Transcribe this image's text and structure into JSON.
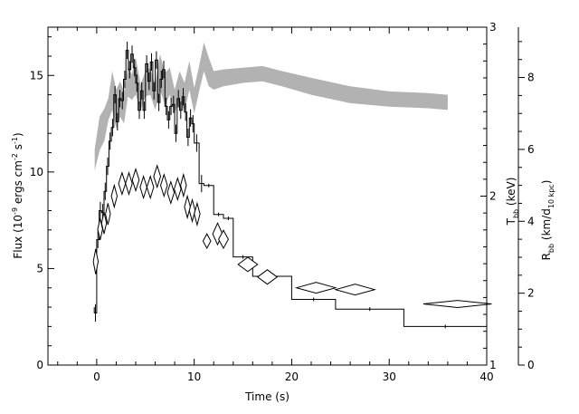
{
  "chart_data": {
    "type": "line",
    "xlabel": "Time (s)",
    "ylabel_left": {
      "pre": "Flux (10",
      "e1": "-9",
      "mid1": " ergs cm",
      "e2": "-2",
      "mid2": " s",
      "e3": "-1",
      "post": ")"
    },
    "ylabel_right1": {
      "pre": "T",
      "sub": "bb",
      "post": " (keV)"
    },
    "ylabel_right2": {
      "pre": "R",
      "sub1": "bb",
      "mid": " (km/d",
      "sub2": "10 kpc",
      "post": ")"
    },
    "xlim": [
      -5,
      40
    ],
    "ylim_flux": [
      0,
      17.5
    ],
    "ylim_kT": [
      1,
      3
    ],
    "ylim_R": [
      0,
      9.4
    ],
    "x_ticks": [
      "0",
      "10",
      "20",
      "30",
      "40"
    ],
    "y_ticks_left": [
      "0",
      "5",
      "10",
      "15"
    ],
    "y_ticks_right1": [
      "1",
      "2",
      "3"
    ],
    "y_ticks_right2": [
      "0",
      "2",
      "4",
      "6",
      "8"
    ],
    "series": [
      {
        "name": "",
        "style": "histogram",
        "steps": [
          [
            -0.25,
            0.0,
            2.7
          ],
          [
            0.0,
            0.25,
            6.5
          ],
          [
            0.25,
            0.5,
            8.0
          ],
          [
            0.5,
            0.75,
            7.9
          ],
          [
            0.75,
            1.0,
            9.0
          ],
          [
            1.0,
            1.25,
            10.3
          ],
          [
            1.25,
            1.5,
            11.6
          ],
          [
            1.5,
            1.75,
            12.3
          ],
          [
            1.75,
            2.0,
            14.0
          ],
          [
            2.0,
            2.25,
            12.6
          ],
          [
            2.25,
            2.5,
            13.8
          ],
          [
            2.5,
            2.75,
            13.7
          ],
          [
            2.75,
            3.0,
            14.8
          ],
          [
            3.0,
            3.25,
            16.3
          ],
          [
            3.25,
            3.5,
            15.3
          ],
          [
            3.5,
            3.75,
            16.1
          ],
          [
            3.75,
            4.0,
            15.4
          ],
          [
            4.0,
            4.25,
            14.6
          ],
          [
            4.25,
            4.5,
            13.2
          ],
          [
            4.5,
            4.75,
            14.2
          ],
          [
            4.75,
            5.0,
            13.2
          ],
          [
            5.0,
            5.25,
            15.6
          ],
          [
            5.25,
            5.5,
            14.7
          ],
          [
            5.5,
            5.75,
            15.7
          ],
          [
            5.75,
            6.0,
            14.2
          ],
          [
            6.0,
            6.25,
            15.8
          ],
          [
            6.25,
            6.5,
            13.6
          ],
          [
            6.5,
            6.75,
            14.8
          ],
          [
            6.75,
            7.0,
            15.3
          ],
          [
            7.0,
            7.25,
            13.4
          ],
          [
            7.25,
            7.5,
            12.7
          ],
          [
            7.5,
            7.75,
            13.4
          ],
          [
            7.75,
            8.0,
            13.5
          ],
          [
            8.0,
            8.25,
            12.0
          ],
          [
            8.25,
            8.5,
            13.8
          ],
          [
            8.5,
            8.75,
            13.2
          ],
          [
            8.75,
            9.0,
            13.9
          ],
          [
            9.0,
            9.25,
            13.1
          ],
          [
            9.25,
            9.5,
            11.8
          ],
          [
            9.5,
            9.75,
            12.8
          ],
          [
            9.75,
            10.0,
            12.5
          ],
          [
            10.0,
            10.5,
            11.5
          ],
          [
            10.5,
            11.0,
            9.4
          ],
          [
            11.0,
            12.0,
            9.3
          ],
          [
            12.0,
            13.0,
            7.8
          ],
          [
            13.0,
            14.0,
            7.6
          ],
          [
            14.0,
            16.0,
            5.6
          ],
          [
            16.0,
            20.0,
            4.6
          ],
          [
            20.0,
            24.5,
            3.4
          ],
          [
            24.5,
            31.5,
            2.9
          ],
          [
            31.5,
            40.0,
            2.0
          ]
        ]
      },
      {
        "name": "",
        "style": "diamonds",
        "axis": "R",
        "points": [
          [
            -0.1,
            2.88,
            0.25,
            0.35
          ],
          [
            0.35,
            3.78,
            0.25,
            0.3
          ],
          [
            0.75,
            3.95,
            0.25,
            0.3
          ],
          [
            1.15,
            4.2,
            0.25,
            0.3
          ],
          [
            1.8,
            4.7,
            0.3,
            0.3
          ],
          [
            2.6,
            5.05,
            0.35,
            0.3
          ],
          [
            3.3,
            5.05,
            0.35,
            0.3
          ],
          [
            4.0,
            5.15,
            0.35,
            0.3
          ],
          [
            4.8,
            4.95,
            0.35,
            0.3
          ],
          [
            5.5,
            4.95,
            0.35,
            0.3
          ],
          [
            6.2,
            5.25,
            0.35,
            0.3
          ],
          [
            6.9,
            5.0,
            0.35,
            0.3
          ],
          [
            7.6,
            4.8,
            0.35,
            0.3
          ],
          [
            8.3,
            4.9,
            0.35,
            0.3
          ],
          [
            8.9,
            5.0,
            0.3,
            0.3
          ],
          [
            9.3,
            4.4,
            0.3,
            0.3
          ],
          [
            9.8,
            4.3,
            0.3,
            0.3
          ],
          [
            10.3,
            4.2,
            0.3,
            0.3
          ],
          [
            11.3,
            3.45,
            0.4,
            0.2
          ],
          [
            12.4,
            3.65,
            0.5,
            0.3
          ],
          [
            13.0,
            3.5,
            0.5,
            0.25
          ],
          [
            15.5,
            2.8,
            1.0,
            0.2
          ],
          [
            17.5,
            2.45,
            1.0,
            0.2
          ],
          [
            22.5,
            2.15,
            2.0,
            0.15
          ],
          [
            26.5,
            2.1,
            2.0,
            0.15
          ],
          [
            37.0,
            1.7,
            3.5,
            0.1
          ]
        ]
      },
      {
        "name": "",
        "style": "band",
        "axis": "kT",
        "x": [
          -0.2,
          0.3,
          0.8,
          1.2,
          1.6,
          2.0,
          2.4,
          2.8,
          3.2,
          3.6,
          4.0,
          4.5,
          5.0,
          5.5,
          6.0,
          6.5,
          7.0,
          7.5,
          8.0,
          8.5,
          9.0,
          9.5,
          10.0,
          10.5,
          11.0,
          11.5,
          12.0,
          13.0,
          15.0,
          17.0,
          19.0,
          22.0,
          26.0,
          30.0,
          34.0,
          36.0
        ],
        "upper": [
          2.28,
          2.47,
          2.52,
          2.58,
          2.74,
          2.63,
          2.68,
          2.62,
          2.77,
          2.72,
          2.82,
          2.66,
          2.74,
          2.76,
          2.66,
          2.84,
          2.73,
          2.76,
          2.63,
          2.74,
          2.67,
          2.8,
          2.64,
          2.77,
          2.91,
          2.82,
          2.74,
          2.75,
          2.76,
          2.77,
          2.74,
          2.7,
          2.65,
          2.62,
          2.61,
          2.6
        ],
        "lower": [
          2.15,
          2.27,
          2.33,
          2.45,
          2.51,
          2.4,
          2.47,
          2.43,
          2.59,
          2.57,
          2.6,
          2.51,
          2.59,
          2.6,
          2.51,
          2.63,
          2.54,
          2.6,
          2.49,
          2.57,
          2.5,
          2.63,
          2.49,
          2.62,
          2.74,
          2.65,
          2.63,
          2.65,
          2.67,
          2.68,
          2.65,
          2.6,
          2.55,
          2.53,
          2.52,
          2.51
        ]
      }
    ]
  }
}
